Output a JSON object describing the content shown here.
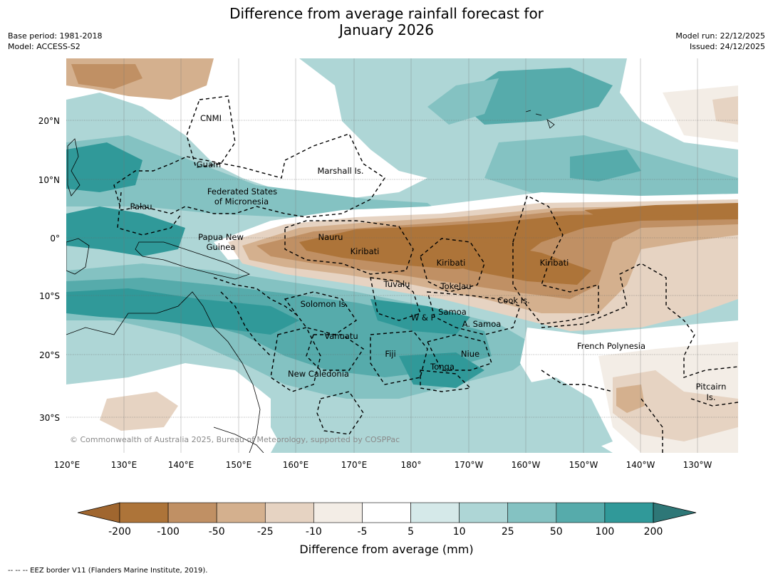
{
  "title_line1": "Difference from average rainfall forecast for",
  "title_line2": "January 2026",
  "base_period": "Base period: 1981-2018",
  "model": "Model: ACCESS-S2",
  "model_run": "Model run: 22/12/2025",
  "issued": "Issued: 24/12/2025",
  "copyright": "© Commonwealth of Australia 2025, Bureau of Meteorology, supported by COSPPac",
  "footer": "--  --  -- EEZ border V11 (Flanders Marine Institute, 2019).",
  "colorbar_label": "Difference from average (mm)",
  "lon_labels": [
    "120°E",
    "130°E",
    "140°E",
    "150°E",
    "160°E",
    "170°E",
    "180°",
    "170°W",
    "160°W",
    "150°W",
    "140°W",
    "130°W"
  ],
  "lat_labels": [
    "20°N",
    "10°N",
    "0°",
    "10°S",
    "20°S",
    "30°S"
  ],
  "colorbar": {
    "ticks": [
      "-200",
      "-100",
      "-50",
      "-25",
      "-10",
      "-5",
      "5",
      "10",
      "25",
      "50",
      "100",
      "200"
    ],
    "colors": [
      "#a0662f",
      "#ad7439",
      "#c09064",
      "#d4b08e",
      "#e6d3c2",
      "#f3ede6",
      "#ffffff",
      "#d5e9e9",
      "#aed6d6",
      "#84c2c2",
      "#56abab",
      "#309999",
      "#2e7777"
    ]
  },
  "regions": [
    {
      "name": "CNMI"
    },
    {
      "name": "Guam"
    },
    {
      "name": "Marshall Is."
    },
    {
      "name": "Federated States"
    },
    {
      "name": "of Micronesia"
    },
    {
      "name": "Palau"
    },
    {
      "name": "Nauru"
    },
    {
      "name": "Kiribati"
    },
    {
      "name": "Kiribati"
    },
    {
      "name": "Kiribati"
    },
    {
      "name": "Papua New"
    },
    {
      "name": "Guinea"
    },
    {
      "name": "Tuvalu"
    },
    {
      "name": "Tokelau"
    },
    {
      "name": "Cook Is."
    },
    {
      "name": "Solomon Is."
    },
    {
      "name": "W & F"
    },
    {
      "name": "Samoa"
    },
    {
      "name": "A. Samoa"
    },
    {
      "name": "Vanuatu"
    },
    {
      "name": "Fiji"
    },
    {
      "name": "Niue"
    },
    {
      "name": "Tonga"
    },
    {
      "name": "New Caledonia"
    },
    {
      "name": "French Polynesia"
    },
    {
      "name": "Pitcairn"
    },
    {
      "name": "Is."
    }
  ]
}
